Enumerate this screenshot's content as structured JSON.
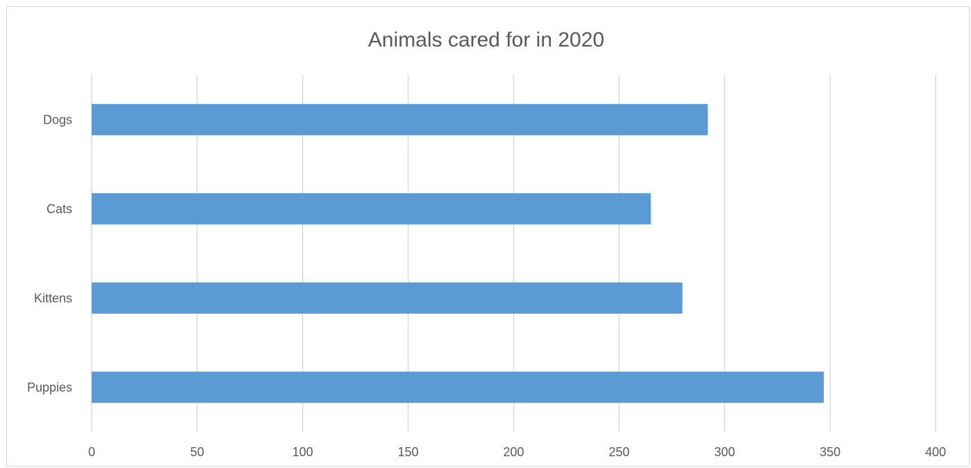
{
  "chart_data": {
    "type": "bar",
    "orientation": "horizontal",
    "title": "Animals cared for in 2020",
    "xlabel": "",
    "ylabel": "",
    "categories": [
      "Dogs",
      "Cats",
      "Kittens",
      "Puppies"
    ],
    "values": [
      292,
      265,
      280,
      347
    ],
    "xlim": [
      0,
      400
    ],
    "x_ticks": [
      0,
      50,
      100,
      150,
      200,
      250,
      300,
      350,
      400
    ],
    "grid": "vertical",
    "legend": "none",
    "colors": {
      "bar": "#5b9bd5",
      "grid": "#d9d9d9",
      "text": "#595959",
      "border": "#d9d9d9"
    }
  }
}
